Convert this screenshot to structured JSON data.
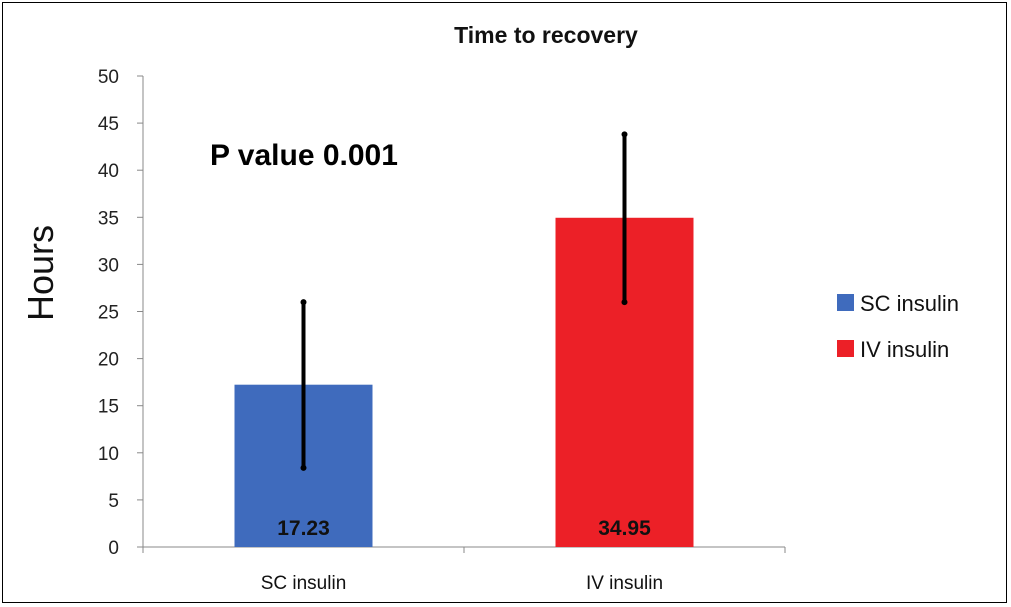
{
  "chart_data": {
    "type": "bar",
    "title": "Time to recovery",
    "ylabel": "Hours",
    "xlabel": "",
    "categories": [
      "SC insulin",
      "IV insulin"
    ],
    "values": [
      17.23,
      34.95
    ],
    "value_labels": [
      "17.23",
      "34.95"
    ],
    "error_bars": [
      {
        "low": 8.4,
        "high": 26.0
      },
      {
        "low": 26.0,
        "high": 43.8
      }
    ],
    "colors": [
      "#3f6bbd",
      "#ec2027"
    ],
    "ylim": [
      0,
      50
    ],
    "yticks": [
      0,
      5,
      10,
      15,
      20,
      25,
      30,
      35,
      40,
      45,
      50
    ],
    "ytick_labels": [
      "0",
      "5",
      "10",
      "15",
      "20",
      "25",
      "30",
      "35",
      "40",
      "45",
      "50"
    ],
    "annotation": "P value 0.001",
    "legend": {
      "position": "right",
      "entries": [
        {
          "label": "SC insulin",
          "color": "#3f6bbd"
        },
        {
          "label": "IV insulin",
          "color": "#ec2027"
        }
      ]
    },
    "grid": false
  }
}
